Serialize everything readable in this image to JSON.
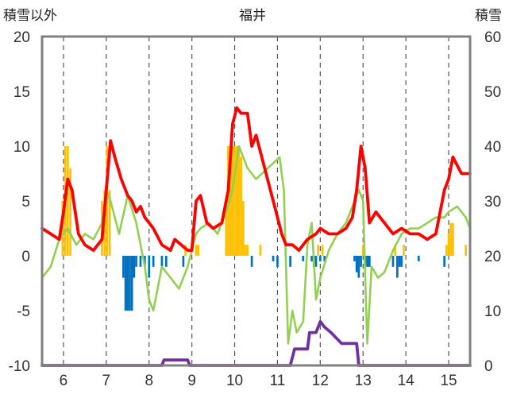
{
  "chart_data": {
    "type": "line",
    "title": "福井",
    "y_left_label": "積雪以外",
    "y_right_label": "積雪",
    "x_ticks": [
      "6",
      "7",
      "8",
      "9",
      "10",
      "11",
      "12",
      "13",
      "14",
      "15"
    ],
    "x_range": [
      5.5,
      15.5
    ],
    "y_left_ticks": [
      "20",
      "15",
      "10",
      "5",
      "0",
      "-5",
      "-10"
    ],
    "y_left_range": [
      -10,
      20
    ],
    "y_right_ticks": [
      "60",
      "50",
      "40",
      "30",
      "20",
      "10",
      "0"
    ],
    "y_right_range": [
      0,
      60
    ],
    "grid": "vertical dashed",
    "colors": {
      "temperature": "#ff0000",
      "other": "#92d050",
      "precip_pos": "#ffc000",
      "precip_neg": "#0070c0",
      "snow": "#7030a0"
    },
    "series": [
      {
        "key": "temperature",
        "axis": "left",
        "x": [
          5.5,
          5.7,
          5.9,
          6.0,
          6.1,
          6.2,
          6.35,
          6.5,
          6.7,
          6.9,
          7.0,
          7.1,
          7.2,
          7.35,
          7.5,
          7.6,
          7.7,
          7.8,
          7.9,
          8.0,
          8.1,
          8.3,
          8.5,
          8.6,
          8.75,
          8.9,
          9.0,
          9.1,
          9.2,
          9.35,
          9.5,
          9.7,
          9.85,
          9.95,
          10.05,
          10.15,
          10.3,
          10.4,
          10.5,
          11.0,
          11.1,
          11.2,
          11.35,
          11.5,
          11.7,
          11.9,
          12.0,
          12.2,
          12.4,
          12.6,
          12.75,
          12.85,
          12.95,
          13.05,
          13.15,
          13.3,
          13.5,
          13.7,
          13.9,
          14.1,
          14.3,
          14.5,
          14.7,
          14.9,
          15.0,
          15.1,
          15.3,
          15.5
        ],
        "y": [
          2.5,
          2.0,
          1.5,
          4.0,
          7.0,
          6.0,
          2.0,
          1.0,
          0.5,
          1.5,
          6.0,
          10.5,
          9.0,
          7.0,
          5.5,
          5.0,
          4.0,
          4.5,
          3.5,
          3.0,
          2.5,
          1.0,
          0.5,
          1.5,
          1.0,
          0.5,
          0.5,
          5.0,
          5.5,
          3.0,
          2.5,
          3.0,
          6.0,
          12.0,
          13.5,
          13.0,
          13.0,
          10.0,
          11.0,
          3.5,
          2.0,
          1.0,
          1.0,
          0.5,
          1.5,
          2.0,
          2.5,
          2.0,
          2.0,
          2.5,
          3.5,
          6.0,
          10.0,
          8.0,
          3.0,
          4.0,
          3.0,
          2.0,
          2.5,
          2.0,
          2.0,
          1.5,
          2.0,
          6.0,
          7.0,
          9.0,
          7.5,
          7.5
        ]
      },
      {
        "key": "other",
        "axis": "left",
        "x": [
          5.5,
          5.7,
          5.9,
          6.1,
          6.3,
          6.5,
          6.7,
          6.9,
          7.0,
          7.1,
          7.2,
          7.3,
          7.5,
          7.7,
          7.9,
          8.0,
          8.1,
          8.2,
          8.3,
          8.5,
          8.7,
          8.9,
          9.0,
          9.1,
          9.2,
          9.4,
          9.6,
          9.8,
          9.95,
          10.1,
          10.2,
          10.3,
          10.4,
          10.5,
          11.05,
          11.15,
          11.25,
          11.35,
          11.45,
          11.6,
          11.7,
          11.8,
          11.9,
          12.0,
          12.2,
          12.4,
          12.6,
          12.8,
          12.9,
          13.0,
          13.05,
          13.1,
          13.2,
          13.35,
          13.5,
          13.7,
          13.9,
          14.1,
          14.3,
          14.5,
          14.7,
          14.9,
          15.0,
          15.2,
          15.4,
          15.5
        ],
        "y": [
          -2.0,
          -1.0,
          1.5,
          2.5,
          1.0,
          2.0,
          1.5,
          3.0,
          6.0,
          5.0,
          3.5,
          2.0,
          5.5,
          3.0,
          -1.0,
          -4.0,
          -5.0,
          -3.0,
          -1.0,
          -2.0,
          -3.0,
          -1.0,
          0.5,
          2.0,
          2.5,
          3.0,
          2.0,
          4.0,
          6.0,
          10.0,
          9.0,
          8.0,
          7.5,
          7.0,
          9.0,
          6.0,
          -8.0,
          -5.0,
          -7.0,
          -6.0,
          1.0,
          3.0,
          -4.0,
          -2.0,
          0.5,
          2.0,
          3.0,
          5.0,
          6.0,
          5.0,
          -2.0,
          -8.0,
          -1.0,
          -2.0,
          -1.5,
          0.5,
          2.0,
          2.5,
          2.5,
          3.0,
          3.5,
          3.5,
          4.0,
          4.5,
          3.5,
          2.5
        ]
      },
      {
        "key": "snow",
        "axis": "right",
        "x": [
          5.5,
          8.3,
          8.35,
          8.9,
          8.95,
          11.0,
          11.3,
          11.4,
          11.7,
          11.75,
          11.9,
          12.0,
          12.1,
          12.25,
          12.5,
          12.85,
          12.9,
          15.5
        ],
        "y": [
          0,
          0,
          1,
          1,
          0,
          0,
          0,
          3,
          3,
          6,
          6,
          8,
          7,
          6,
          4,
          4,
          0,
          0
        ]
      }
    ],
    "bars": {
      "axis": "left",
      "x": [
        5.98,
        6.04,
        6.1,
        6.16,
        6.9,
        6.96,
        7.02,
        7.08,
        7.4,
        7.45,
        7.5,
        7.55,
        7.6,
        7.65,
        7.7,
        7.8,
        7.9,
        8.0,
        8.1,
        8.3,
        8.4,
        8.8,
        8.85,
        9.1,
        9.15,
        9.8,
        9.85,
        9.9,
        9.95,
        10.0,
        10.05,
        10.1,
        10.15,
        10.2,
        10.25,
        10.3,
        10.4,
        10.6,
        10.9,
        11.0,
        11.3,
        11.6,
        11.8,
        11.85,
        11.9,
        11.95,
        12.0,
        12.05,
        12.1,
        12.8,
        12.85,
        12.9,
        12.95,
        13.0,
        13.05,
        13.1,
        13.15,
        13.7,
        13.75,
        13.8,
        13.85,
        13.9,
        13.95,
        14.3,
        14.9,
        14.95,
        15.0,
        15.05,
        15.1,
        15.4
      ],
      "values": [
        5,
        10,
        10,
        8,
        5,
        6,
        10,
        6,
        -2,
        -5,
        -5,
        -5,
        -5,
        -2,
        -1,
        -1,
        -1,
        -2,
        -1,
        -1,
        -1,
        -1,
        1,
        1,
        1,
        5,
        10,
        10,
        10,
        10,
        10,
        10,
        9,
        5,
        1,
        1,
        -1,
        1,
        -0.5,
        -1,
        -1,
        -0.5,
        -0.5,
        -1,
        -1,
        1,
        -0.5,
        1,
        -0.5,
        -0.5,
        -1.5,
        -2,
        -1,
        1,
        -1,
        -1,
        -1,
        -1,
        1,
        -2,
        -1,
        -1,
        1,
        -0.5,
        -1,
        1,
        2,
        3,
        3,
        1
      ]
    }
  }
}
